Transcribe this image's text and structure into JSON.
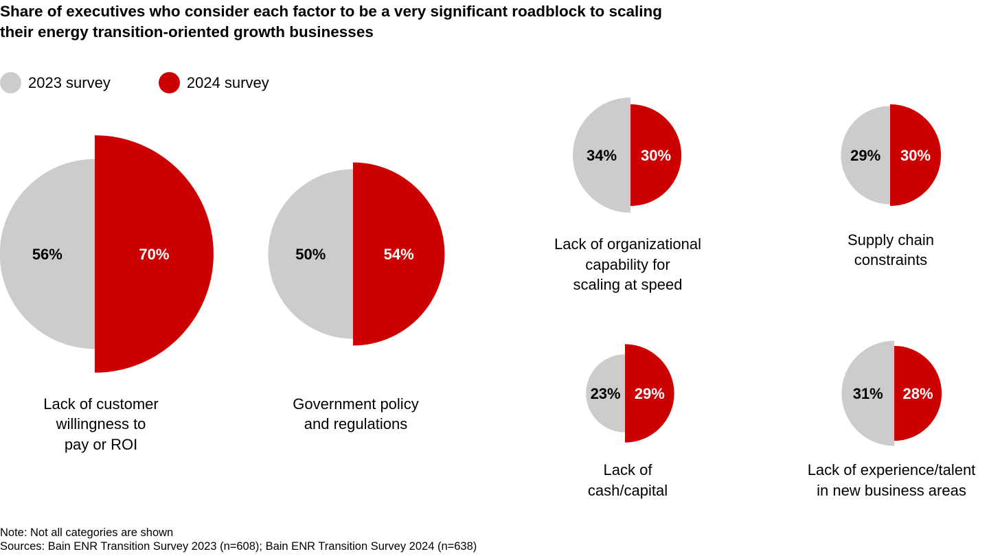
{
  "chart_data": {
    "type": "half-circle-comparison",
    "title": "Share of executives who consider each factor to be a very significant roadblock to scaling their energy transition-oriented growth businesses",
    "title_lines": [
      "Share of executives who consider each factor to be a very significant roadblock to scaling",
      "their energy transition-oriented growth businesses"
    ],
    "legend": [
      {
        "name": "2023 survey",
        "color": "#CCCCCC"
      },
      {
        "name": "2024 survey",
        "color": "#CC0000"
      }
    ],
    "legend_placement": "top-left",
    "unit": "%",
    "categories": [
      {
        "label_lines": [
          "Lack of customer",
          "willingness to",
          "pay or ROI"
        ],
        "v2023": 56,
        "v2024": 70
      },
      {
        "label_lines": [
          "Government policy",
          "and regulations"
        ],
        "v2023": 50,
        "v2024": 54
      },
      {
        "label_lines": [
          "Lack of organizational",
          "capability for",
          "scaling at speed"
        ],
        "v2023": 34,
        "v2024": 30
      },
      {
        "label_lines": [
          "Supply chain",
          "constraints"
        ],
        "v2023": 29,
        "v2024": 30
      },
      {
        "label_lines": [
          "Lack of",
          "cash/capital"
        ],
        "v2023": 23,
        "v2024": 29
      },
      {
        "label_lines": [
          "Lack of experience/talent",
          "in new business areas"
        ],
        "v2023": 31,
        "v2024": 28
      }
    ],
    "value_labels": [
      {
        "v2023": "56%",
        "v2024": "70%"
      },
      {
        "v2023": "50%",
        "v2024": "54%"
      },
      {
        "v2023": "34%",
        "v2024": "30%"
      },
      {
        "v2023": "29%",
        "v2024": "30%"
      },
      {
        "v2023": "23%",
        "v2024": "29%"
      },
      {
        "v2023": "31%",
        "v2024": "28%"
      }
    ]
  },
  "footer": {
    "note": "Note: Not all categories are shown",
    "sources": "Sources: Bain ENR Transition Survey 2023 (n=608); Bain ENR Transition Survey 2024 (n=638)"
  }
}
